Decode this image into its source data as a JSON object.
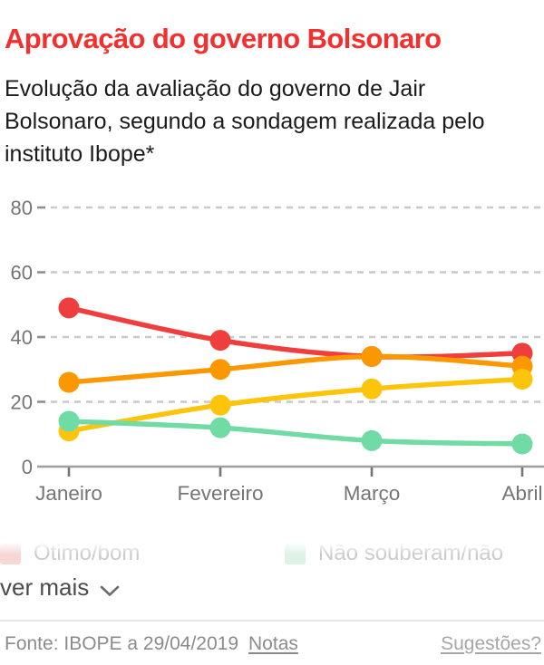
{
  "header": {
    "title": "Aprovação do governo Bolsonaro",
    "subtitle": "Evolução da avaliação do governo de Jair Bolsonaro, segundo a sondagem realizada pelo instituto Ibope*"
  },
  "chart_data": {
    "type": "line",
    "categories": [
      "Janeiro",
      "Fevereiro",
      "Março",
      "Abril"
    ],
    "series": [
      {
        "id": "otimo-bom",
        "name": "Ótimo/bom",
        "color": "#ef3e3e",
        "values": [
          49,
          39,
          34,
          35
        ]
      },
      {
        "id": "serie-laranja",
        "name": "",
        "color": "#fb9800",
        "values": [
          26,
          30,
          34,
          31
        ]
      },
      {
        "id": "serie-amarela",
        "name": "",
        "color": "#fcc40a",
        "values": [
          11,
          19,
          24,
          27
        ]
      },
      {
        "id": "nao-souberam",
        "name": "Não souberam/não",
        "color": "#70dba4",
        "values": [
          14,
          12,
          8,
          7
        ]
      }
    ],
    "yticks": [
      0,
      20,
      40,
      60,
      80
    ],
    "ylim": [
      0,
      88
    ],
    "grid": "dashed-horizontal",
    "legend_position": "bottom",
    "title": "Aprovação do governo Bolsonaro",
    "xlabel": "",
    "ylabel": ""
  },
  "legend": {
    "items": [
      {
        "label": "Ótimo/bom",
        "swatch": "#f8d6d5"
      },
      {
        "label": "Não souberam/não",
        "swatch": "#def2e6"
      }
    ],
    "expand_label": "ver mais"
  },
  "footer": {
    "source": "Fonte: IBOPE a 29/04/2019",
    "notes_link": "Notas",
    "suggestions_link": "Sugestões?"
  },
  "colors": {
    "title_red": "#f3302f",
    "axis_text": "#757575",
    "gridline": "#c9c9c9",
    "baseline": "#9e9e9e"
  }
}
